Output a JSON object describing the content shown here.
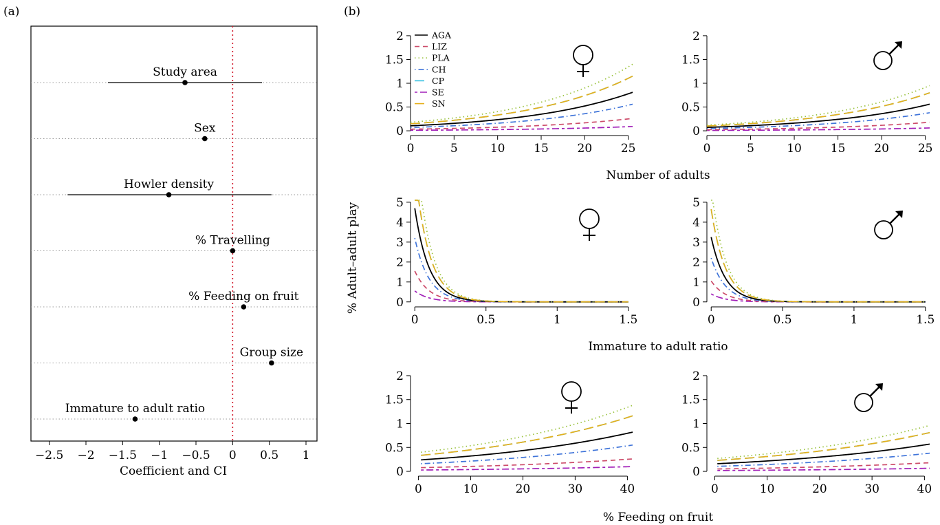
{
  "panel_labels": {
    "a": "(a)",
    "b": "(b)"
  },
  "colors": {
    "AGA": "#000000",
    "LIZ": "#cc4c6a",
    "PLA": "#99c23c",
    "CH": "#3f74d9",
    "CP": "#33bfe0",
    "SE": "#a11fb8",
    "SN": "#e6b01c",
    "ref_line": "#d2192b",
    "row_guide": "#9a9a9a"
  },
  "sex_symbols": {
    "female": "♀",
    "male": "♂"
  },
  "shared_labels": {
    "ylabel": "% Adult–adult play"
  },
  "chart_data": [
    {
      "id": "forest",
      "type": "scatter",
      "xlabel": "Coefficient and CI",
      "xlim": [
        -2.75,
        1.15
      ],
      "xticks": [
        -2.5,
        -2,
        -1.5,
        -1,
        -0.5,
        0,
        0.5,
        1
      ],
      "xtick_labels": [
        "−2.5",
        "−2",
        "−1.5",
        "−1",
        "−0.5",
        "0",
        "0.5",
        "1"
      ],
      "reference_line": 0,
      "terms": [
        {
          "label": "Study area",
          "estimate": -0.65,
          "ci": [
            -1.7,
            0.4
          ]
        },
        {
          "label": "Sex",
          "estimate": -0.38,
          "ci": null
        },
        {
          "label": "Howler density",
          "estimate": -0.87,
          "ci": [
            -2.25,
            0.53
          ]
        },
        {
          "label": "% Travelling",
          "estimate": 0.0,
          "ci": null
        },
        {
          "label": "% Feeding on fruit",
          "estimate": 0.15,
          "ci": null
        },
        {
          "label": "Group size",
          "estimate": 0.53,
          "ci": null
        },
        {
          "label": "Immature to adult ratio",
          "estimate": -1.33,
          "ci": null
        }
      ]
    },
    {
      "id": "adults",
      "type": "line",
      "xlabel": "Number of adults",
      "xlim": [
        0,
        25.5
      ],
      "ylim": [
        -0.1,
        2.1
      ],
      "xticks": [
        0,
        5,
        10,
        15,
        20,
        25
      ],
      "yticks": [
        0,
        0.5,
        1,
        1.5,
        2
      ],
      "ytick_labels": [
        "0",
        "0.5",
        "1",
        "1.5",
        "2"
      ],
      "curve": "exp_growth",
      "x_range": [
        0,
        25.5
      ],
      "growth_rate": 0.08,
      "panels": [
        {
          "sex": "female",
          "series": [
            {
              "name": "AGA",
              "start": 0.105,
              "end": 0.81
            },
            {
              "name": "LIZ",
              "start": 0.034,
              "end": 0.26
            },
            {
              "name": "PLA",
              "start": 0.18,
              "end": 1.4
            },
            {
              "name": "CH",
              "start": 0.07,
              "end": 0.56
            },
            {
              "name": "CP",
              "start": 0.148,
              "end": 1.15
            },
            {
              "name": "SE",
              "start": 0.011,
              "end": 0.09
            },
            {
              "name": "SN",
              "start": 0.148,
              "end": 1.15
            }
          ]
        },
        {
          "sex": "male",
          "series": [
            {
              "name": "AGA",
              "start": 0.072,
              "end": 0.56
            },
            {
              "name": "LIZ",
              "start": 0.023,
              "end": 0.18
            },
            {
              "name": "PLA",
              "start": 0.12,
              "end": 0.95
            },
            {
              "name": "CH",
              "start": 0.048,
              "end": 0.38
            },
            {
              "name": "CP",
              "start": 0.1,
              "end": 0.8
            },
            {
              "name": "SE",
              "start": 0.008,
              "end": 0.06
            },
            {
              "name": "SN",
              "start": 0.1,
              "end": 0.8
            }
          ]
        }
      ]
    },
    {
      "id": "ratio",
      "type": "line",
      "xlabel": "Immature to adult ratio",
      "xlim": [
        -0.03,
        1.53
      ],
      "ylim": [
        -0.25,
        5.1
      ],
      "xticks": [
        0,
        0.5,
        1,
        1.5
      ],
      "yticks": [
        0,
        1,
        2,
        3,
        4,
        5
      ],
      "xtick_labels": [
        "0",
        "0.5",
        "1",
        "1.5"
      ],
      "ytick_labels": [
        "0",
        "1",
        "2",
        "3",
        "4",
        "5"
      ],
      "curve": "exp_decay",
      "x_range": [
        0,
        1.5
      ],
      "decay_rate": 10,
      "panels": [
        {
          "sex": "female",
          "series": [
            {
              "name": "AGA",
              "start": 4.7
            },
            {
              "name": "LIZ",
              "start": 1.55
            },
            {
              "name": "PLA",
              "start": 8.3
            },
            {
              "name": "CH",
              "start": 3.2
            },
            {
              "name": "CP",
              "start": 6.7
            },
            {
              "name": "SE",
              "start": 0.55
            },
            {
              "name": "SN",
              "start": 6.7
            }
          ]
        },
        {
          "sex": "male",
          "series": [
            {
              "name": "AGA",
              "start": 3.25
            },
            {
              "name": "LIZ",
              "start": 1.05
            },
            {
              "name": "PLA",
              "start": 5.7
            },
            {
              "name": "CH",
              "start": 2.2
            },
            {
              "name": "CP",
              "start": 4.65
            },
            {
              "name": "SE",
              "start": 0.4
            },
            {
              "name": "SN",
              "start": 4.65
            }
          ]
        }
      ]
    },
    {
      "id": "fruit",
      "type": "line",
      "xlabel": "% Feeding on fruit",
      "xlim": [
        -1.5,
        41
      ],
      "ylim": [
        -0.1,
        2.1
      ],
      "xticks": [
        0,
        10,
        20,
        30,
        40
      ],
      "yticks": [
        0,
        0.5,
        1,
        1.5,
        2
      ],
      "ytick_labels": [
        "0",
        "0.5",
        "1",
        "1.5",
        "2"
      ],
      "curve": "exp_growth",
      "x_range": [
        0.5,
        41
      ],
      "growth_rate": 0.03,
      "panels": [
        {
          "sex": "female",
          "series": [
            {
              "name": "AGA",
              "start": 0.24,
              "end": 0.82
            },
            {
              "name": "LIZ",
              "start": 0.078,
              "end": 0.26
            },
            {
              "name": "PLA",
              "start": 0.4,
              "end": 1.38
            },
            {
              "name": "CH",
              "start": 0.16,
              "end": 0.55
            },
            {
              "name": "CP",
              "start": 0.335,
              "end": 1.16
            },
            {
              "name": "SE",
              "start": 0.028,
              "end": 0.1
            },
            {
              "name": "SN",
              "start": 0.335,
              "end": 1.16
            }
          ]
        },
        {
          "sex": "male",
          "series": [
            {
              "name": "AGA",
              "start": 0.16,
              "end": 0.57
            },
            {
              "name": "LIZ",
              "start": 0.05,
              "end": 0.18
            },
            {
              "name": "PLA",
              "start": 0.27,
              "end": 0.96
            },
            {
              "name": "CH",
              "start": 0.105,
              "end": 0.38
            },
            {
              "name": "CP",
              "start": 0.23,
              "end": 0.81
            },
            {
              "name": "SE",
              "start": 0.018,
              "end": 0.065
            },
            {
              "name": "SN",
              "start": 0.23,
              "end": 0.81
            }
          ]
        }
      ]
    }
  ],
  "legend": {
    "placement": "top-left of first panel",
    "entries": [
      {
        "name": "AGA",
        "dash": "solid"
      },
      {
        "name": "LIZ",
        "dash": "dashed"
      },
      {
        "name": "PLA",
        "dash": "dotted"
      },
      {
        "name": "CH",
        "dash": "dotdash"
      },
      {
        "name": "CP",
        "dash": "longdash"
      },
      {
        "name": "SE",
        "dash": "twodash"
      },
      {
        "name": "SN",
        "dash": "longdash"
      }
    ]
  }
}
